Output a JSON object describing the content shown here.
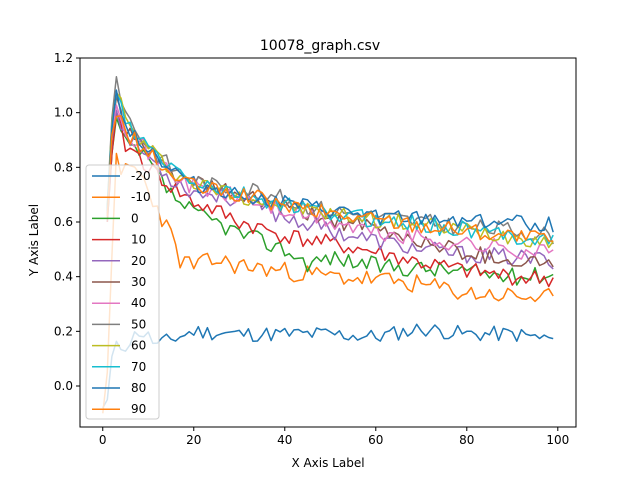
{
  "chart_data": {
    "type": "line",
    "title": "10078_graph.csv",
    "xlabel": "X Axis Label",
    "ylabel": "Y Axis Label",
    "xlim": [
      -5,
      104
    ],
    "ylim": [
      -0.15,
      1.2
    ],
    "xticks": [
      0,
      20,
      40,
      60,
      80,
      100
    ],
    "yticks": [
      0.0,
      0.2,
      0.4,
      0.6,
      0.8,
      1.0,
      1.2
    ],
    "xtick_labels": [
      "0",
      "20",
      "40",
      "60",
      "80",
      "100"
    ],
    "ytick_labels": [
      "0.0",
      "0.2",
      "0.4",
      "0.6",
      "0.8",
      "1.0",
      "1.2"
    ],
    "grid": false,
    "legend_position": "lower-left",
    "series": [
      {
        "name": "-20",
        "color": "#1f77b4",
        "anchors": [
          [
            0,
            -0.08
          ],
          [
            1,
            -0.05
          ],
          [
            2,
            0.1
          ],
          [
            3,
            0.14
          ],
          [
            5,
            0.15
          ],
          [
            8,
            0.2
          ],
          [
            10,
            0.18
          ],
          [
            12,
            0.15
          ],
          [
            15,
            0.17
          ],
          [
            20,
            0.2
          ],
          [
            30,
            0.19
          ],
          [
            40,
            0.19
          ],
          [
            50,
            0.19
          ],
          [
            60,
            0.18
          ],
          [
            70,
            0.21
          ],
          [
            80,
            0.19
          ],
          [
            90,
            0.19
          ],
          [
            99,
            0.17
          ]
        ],
        "noise": 0.018,
        "seed": 11
      },
      {
        "name": "-10",
        "color": "#ff7f0e",
        "anchors": [
          [
            0,
            -0.1
          ],
          [
            1,
            0.05
          ],
          [
            2,
            0.5
          ],
          [
            3,
            0.82
          ],
          [
            4,
            0.75
          ],
          [
            5,
            0.8
          ],
          [
            7,
            0.8
          ],
          [
            9,
            0.75
          ],
          [
            12,
            0.65
          ],
          [
            15,
            0.55
          ],
          [
            17,
            0.46
          ],
          [
            20,
            0.44
          ],
          [
            25,
            0.46
          ],
          [
            30,
            0.44
          ],
          [
            40,
            0.42
          ],
          [
            50,
            0.4
          ],
          [
            60,
            0.39
          ],
          [
            70,
            0.37
          ],
          [
            80,
            0.34
          ],
          [
            90,
            0.33
          ],
          [
            99,
            0.32
          ]
        ],
        "noise": 0.022,
        "seed": 23
      },
      {
        "name": "0",
        "color": "#2ca02c",
        "anchors": [
          [
            1,
            0.6
          ],
          [
            2,
            0.85
          ],
          [
            3,
            0.97
          ],
          [
            5,
            0.88
          ],
          [
            8,
            0.85
          ],
          [
            10,
            0.82
          ],
          [
            15,
            0.7
          ],
          [
            20,
            0.63
          ],
          [
            25,
            0.6
          ],
          [
            30,
            0.56
          ],
          [
            40,
            0.5
          ],
          [
            45,
            0.45
          ],
          [
            50,
            0.47
          ],
          [
            60,
            0.44
          ],
          [
            70,
            0.43
          ],
          [
            80,
            0.42
          ],
          [
            90,
            0.4
          ],
          [
            99,
            0.41
          ]
        ],
        "noise": 0.02,
        "seed": 37
      },
      {
        "name": "10",
        "color": "#d62728",
        "anchors": [
          [
            1,
            0.6
          ],
          [
            2,
            0.85
          ],
          [
            3,
            0.98
          ],
          [
            5,
            0.88
          ],
          [
            8,
            0.84
          ],
          [
            10,
            0.8
          ],
          [
            15,
            0.73
          ],
          [
            20,
            0.67
          ],
          [
            25,
            0.64
          ],
          [
            30,
            0.6
          ],
          [
            40,
            0.55
          ],
          [
            50,
            0.52
          ],
          [
            60,
            0.49
          ],
          [
            70,
            0.45
          ],
          [
            80,
            0.42
          ],
          [
            90,
            0.4
          ],
          [
            99,
            0.39
          ]
        ],
        "noise": 0.02,
        "seed": 41
      },
      {
        "name": "20",
        "color": "#9467bd",
        "anchors": [
          [
            1,
            0.62
          ],
          [
            2,
            0.9
          ],
          [
            3,
            1.02
          ],
          [
            5,
            0.92
          ],
          [
            8,
            0.87
          ],
          [
            10,
            0.84
          ],
          [
            15,
            0.76
          ],
          [
            20,
            0.71
          ],
          [
            25,
            0.7
          ],
          [
            30,
            0.68
          ],
          [
            40,
            0.62
          ],
          [
            50,
            0.57
          ],
          [
            60,
            0.53
          ],
          [
            70,
            0.5
          ],
          [
            80,
            0.48
          ],
          [
            90,
            0.47
          ],
          [
            99,
            0.46
          ]
        ],
        "noise": 0.02,
        "seed": 53
      },
      {
        "name": "30",
        "color": "#8c564b",
        "anchors": [
          [
            1,
            0.63
          ],
          [
            2,
            0.92
          ],
          [
            3,
            1.05
          ],
          [
            5,
            0.94
          ],
          [
            8,
            0.88
          ],
          [
            10,
            0.85
          ],
          [
            15,
            0.78
          ],
          [
            20,
            0.74
          ],
          [
            25,
            0.72
          ],
          [
            30,
            0.7
          ],
          [
            40,
            0.65
          ],
          [
            50,
            0.61
          ],
          [
            60,
            0.57
          ],
          [
            70,
            0.53
          ],
          [
            80,
            0.49
          ],
          [
            90,
            0.46
          ],
          [
            99,
            0.45
          ]
        ],
        "noise": 0.02,
        "seed": 61
      },
      {
        "name": "40",
        "color": "#e377c2",
        "anchors": [
          [
            1,
            0.64
          ],
          [
            2,
            0.93
          ],
          [
            3,
            1.06
          ],
          [
            5,
            0.95
          ],
          [
            8,
            0.89
          ],
          [
            10,
            0.86
          ],
          [
            15,
            0.78
          ],
          [
            20,
            0.73
          ],
          [
            25,
            0.7
          ],
          [
            30,
            0.69
          ],
          [
            40,
            0.64
          ],
          [
            50,
            0.6
          ],
          [
            60,
            0.56
          ],
          [
            70,
            0.54
          ],
          [
            80,
            0.52
          ],
          [
            90,
            0.5
          ],
          [
            99,
            0.49
          ]
        ],
        "noise": 0.022,
        "seed": 71
      },
      {
        "name": "50",
        "color": "#7f7f7f",
        "anchors": [
          [
            1,
            0.66
          ],
          [
            2,
            0.98
          ],
          [
            3,
            1.13
          ],
          [
            5,
            1.0
          ],
          [
            8,
            0.92
          ],
          [
            10,
            0.88
          ],
          [
            15,
            0.8
          ],
          [
            20,
            0.75
          ],
          [
            25,
            0.73
          ],
          [
            30,
            0.72
          ],
          [
            35,
            0.72
          ],
          [
            40,
            0.68
          ],
          [
            50,
            0.64
          ],
          [
            60,
            0.62
          ],
          [
            70,
            0.6
          ],
          [
            80,
            0.58
          ],
          [
            90,
            0.57
          ],
          [
            99,
            0.55
          ]
        ],
        "noise": 0.02,
        "seed": 83
      },
      {
        "name": "60",
        "color": "#bcbd22",
        "anchors": [
          [
            1,
            0.65
          ],
          [
            2,
            0.96
          ],
          [
            3,
            1.1
          ],
          [
            5,
            0.97
          ],
          [
            8,
            0.9
          ],
          [
            10,
            0.87
          ],
          [
            15,
            0.79
          ],
          [
            20,
            0.74
          ],
          [
            25,
            0.72
          ],
          [
            30,
            0.7
          ],
          [
            40,
            0.66
          ],
          [
            50,
            0.63
          ],
          [
            60,
            0.61
          ],
          [
            70,
            0.59
          ],
          [
            80,
            0.57
          ],
          [
            90,
            0.55
          ],
          [
            99,
            0.53
          ]
        ],
        "noise": 0.02,
        "seed": 97
      },
      {
        "name": "70",
        "color": "#17becf",
        "anchors": [
          [
            1,
            0.65
          ],
          [
            2,
            0.95
          ],
          [
            3,
            1.08
          ],
          [
            5,
            0.96
          ],
          [
            8,
            0.9
          ],
          [
            10,
            0.87
          ],
          [
            15,
            0.8
          ],
          [
            20,
            0.75
          ],
          [
            25,
            0.72
          ],
          [
            30,
            0.7
          ],
          [
            40,
            0.66
          ],
          [
            50,
            0.63
          ],
          [
            60,
            0.61
          ],
          [
            70,
            0.59
          ],
          [
            80,
            0.57
          ],
          [
            90,
            0.55
          ],
          [
            99,
            0.54
          ]
        ],
        "noise": 0.02,
        "seed": 103
      },
      {
        "name": "80",
        "color": "#1f77b4",
        "anchors": [
          [
            1,
            0.64
          ],
          [
            2,
            0.94
          ],
          [
            3,
            1.07
          ],
          [
            5,
            0.96
          ],
          [
            8,
            0.9
          ],
          [
            10,
            0.87
          ],
          [
            15,
            0.79
          ],
          [
            20,
            0.74
          ],
          [
            25,
            0.72
          ],
          [
            30,
            0.7
          ],
          [
            40,
            0.67
          ],
          [
            50,
            0.64
          ],
          [
            60,
            0.62
          ],
          [
            70,
            0.61
          ],
          [
            80,
            0.61
          ],
          [
            90,
            0.6
          ],
          [
            99,
            0.59
          ]
        ],
        "noise": 0.018,
        "seed": 113
      },
      {
        "name": "90",
        "color": "#ff7f0e",
        "anchors": [
          [
            1,
            0.62
          ],
          [
            2,
            0.92
          ],
          [
            3,
            1.0
          ],
          [
            5,
            0.93
          ],
          [
            8,
            0.88
          ],
          [
            10,
            0.85
          ],
          [
            15,
            0.77
          ],
          [
            20,
            0.73
          ],
          [
            25,
            0.71
          ],
          [
            30,
            0.7
          ],
          [
            40,
            0.66
          ],
          [
            50,
            0.63
          ],
          [
            60,
            0.61
          ],
          [
            70,
            0.59
          ],
          [
            80,
            0.57
          ],
          [
            90,
            0.55
          ],
          [
            99,
            0.53
          ]
        ],
        "noise": 0.02,
        "seed": 127
      }
    ]
  }
}
